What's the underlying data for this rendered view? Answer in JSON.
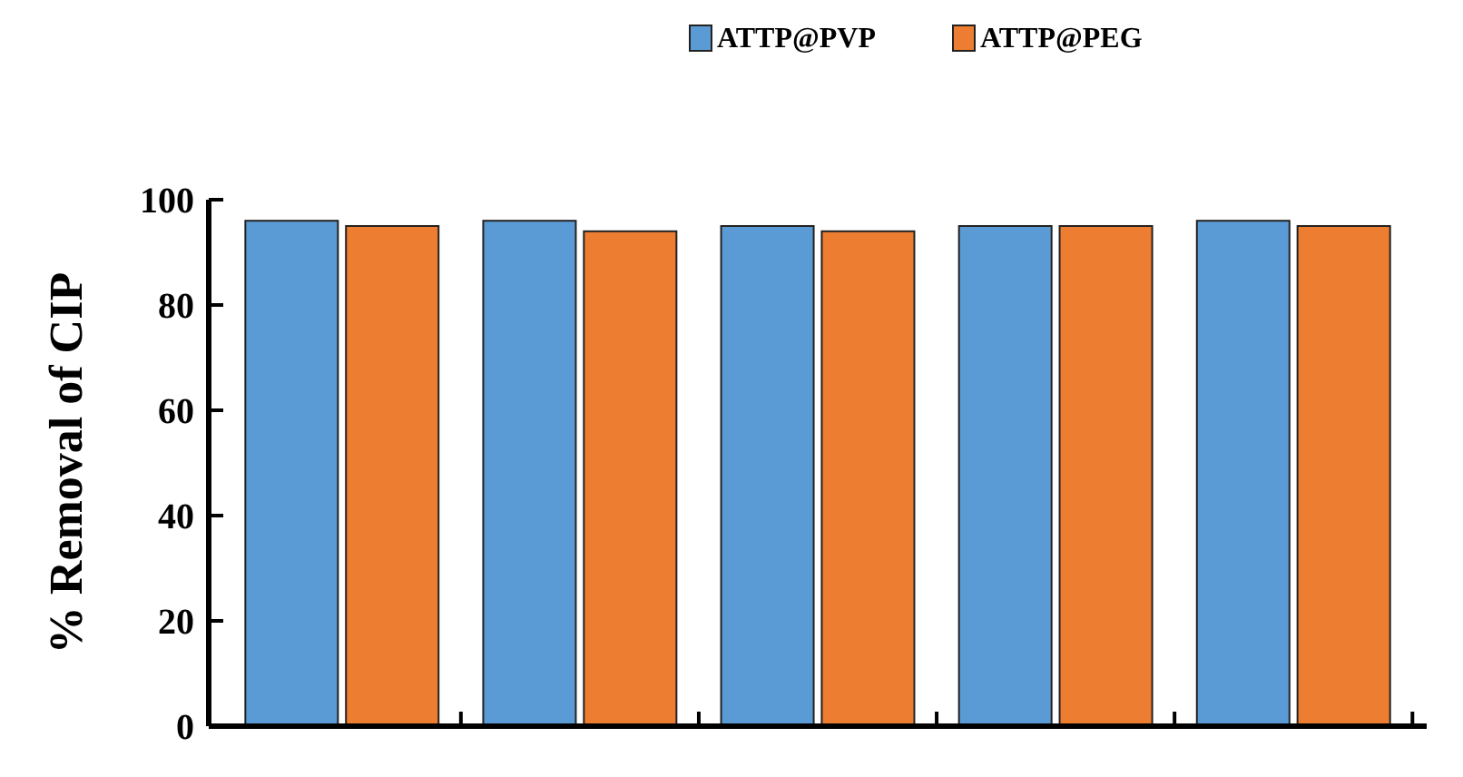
{
  "chart_data": {
    "type": "bar",
    "ylabel": "% Removal of CIP",
    "categories": [
      null,
      null,
      null,
      null,
      null
    ],
    "series": [
      {
        "name": "ATTP@PVP",
        "color": "#5b9bd5",
        "values": [
          96,
          96,
          95,
          95,
          96
        ]
      },
      {
        "name": "ATTP@PEG",
        "color": "#ed7d31",
        "values": [
          95,
          94,
          94,
          95,
          95
        ]
      }
    ],
    "ylim": [
      0,
      100
    ],
    "yticks": [
      0,
      20,
      40,
      60,
      80,
      100
    ],
    "legend": "top right"
  }
}
